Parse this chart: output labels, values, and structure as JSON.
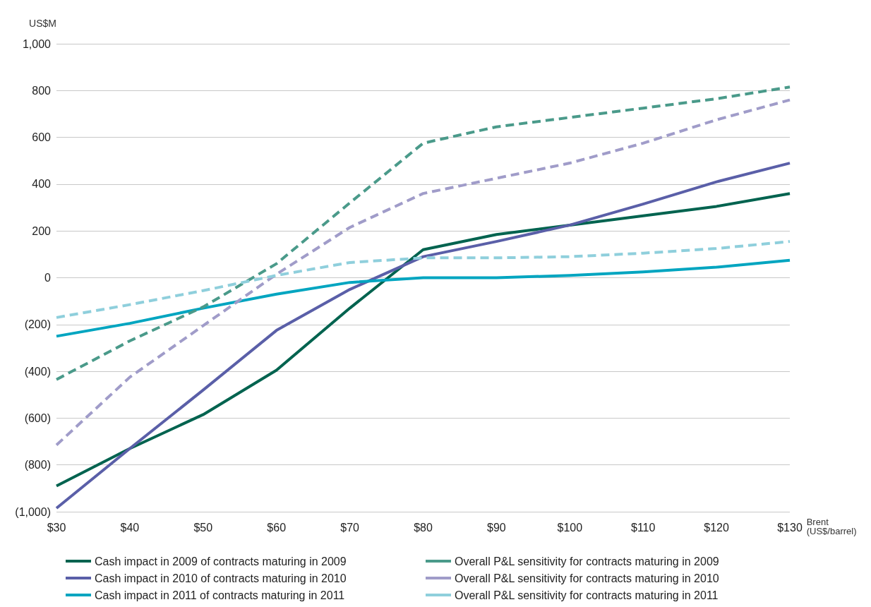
{
  "chart_data": {
    "type": "line",
    "ylabel": "US$M",
    "xlabel": "Brent\n(US$/barrel)",
    "categories": [
      "$30",
      "$40",
      "$50",
      "$60",
      "$70",
      "$80",
      "$90",
      "$100",
      "$110",
      "$120",
      "$130"
    ],
    "ylim": [
      -1000,
      1000
    ],
    "yticks": [
      {
        "value": -1000,
        "label": "(1,000)"
      },
      {
        "value": -800,
        "label": "(800)"
      },
      {
        "value": -600,
        "label": "(600)"
      },
      {
        "value": -400,
        "label": "(400)"
      },
      {
        "value": -200,
        "label": "(200)"
      },
      0,
      200,
      400,
      600,
      800,
      {
        "value": 1000,
        "label": "1,000"
      }
    ],
    "grid": "y",
    "legend": "bottom",
    "marker": "none",
    "series": [
      {
        "name": "Cash impact in 2009 of contracts maturing in 2009",
        "color": "#00634f",
        "line_style": "solid",
        "values": [
          -890,
          -730,
          -585,
          -395,
          -130,
          120,
          185,
          225,
          265,
          305,
          360
        ]
      },
      {
        "name": "Cash impact in 2010 of contracts maturing in 2010",
        "color": "#5a5fa8",
        "line_style": "solid",
        "values": [
          -985,
          -730,
          -480,
          -225,
          -50,
          90,
          155,
          225,
          315,
          410,
          490
        ]
      },
      {
        "name": "Cash impact in 2011 of contracts maturing in 2011",
        "color": "#00a5c0",
        "line_style": "solid",
        "values": [
          -250,
          -195,
          -130,
          -70,
          -20,
          0,
          0,
          10,
          25,
          45,
          75
        ]
      },
      {
        "name": "Overall P&L sensitivity for contracts maturing in 2009",
        "color": "#4a9a8a",
        "line_style": "dashed",
        "values": [
          -435,
          -270,
          -125,
          60,
          320,
          575,
          645,
          685,
          725,
          765,
          815
        ]
      },
      {
        "name": "Overall P&L sensitivity for contracts maturing in 2010",
        "color": "#a09cc9",
        "line_style": "dashed",
        "values": [
          -715,
          -425,
          -205,
          15,
          215,
          360,
          425,
          490,
          575,
          675,
          760
        ]
      },
      {
        "name": "Overall P&L sensitivity for contracts maturing in 2011",
        "color": "#8fcfdc",
        "line_style": "dashed",
        "values": [
          -170,
          -115,
          -55,
          10,
          65,
          85,
          85,
          90,
          105,
          125,
          155
        ]
      }
    ]
  }
}
